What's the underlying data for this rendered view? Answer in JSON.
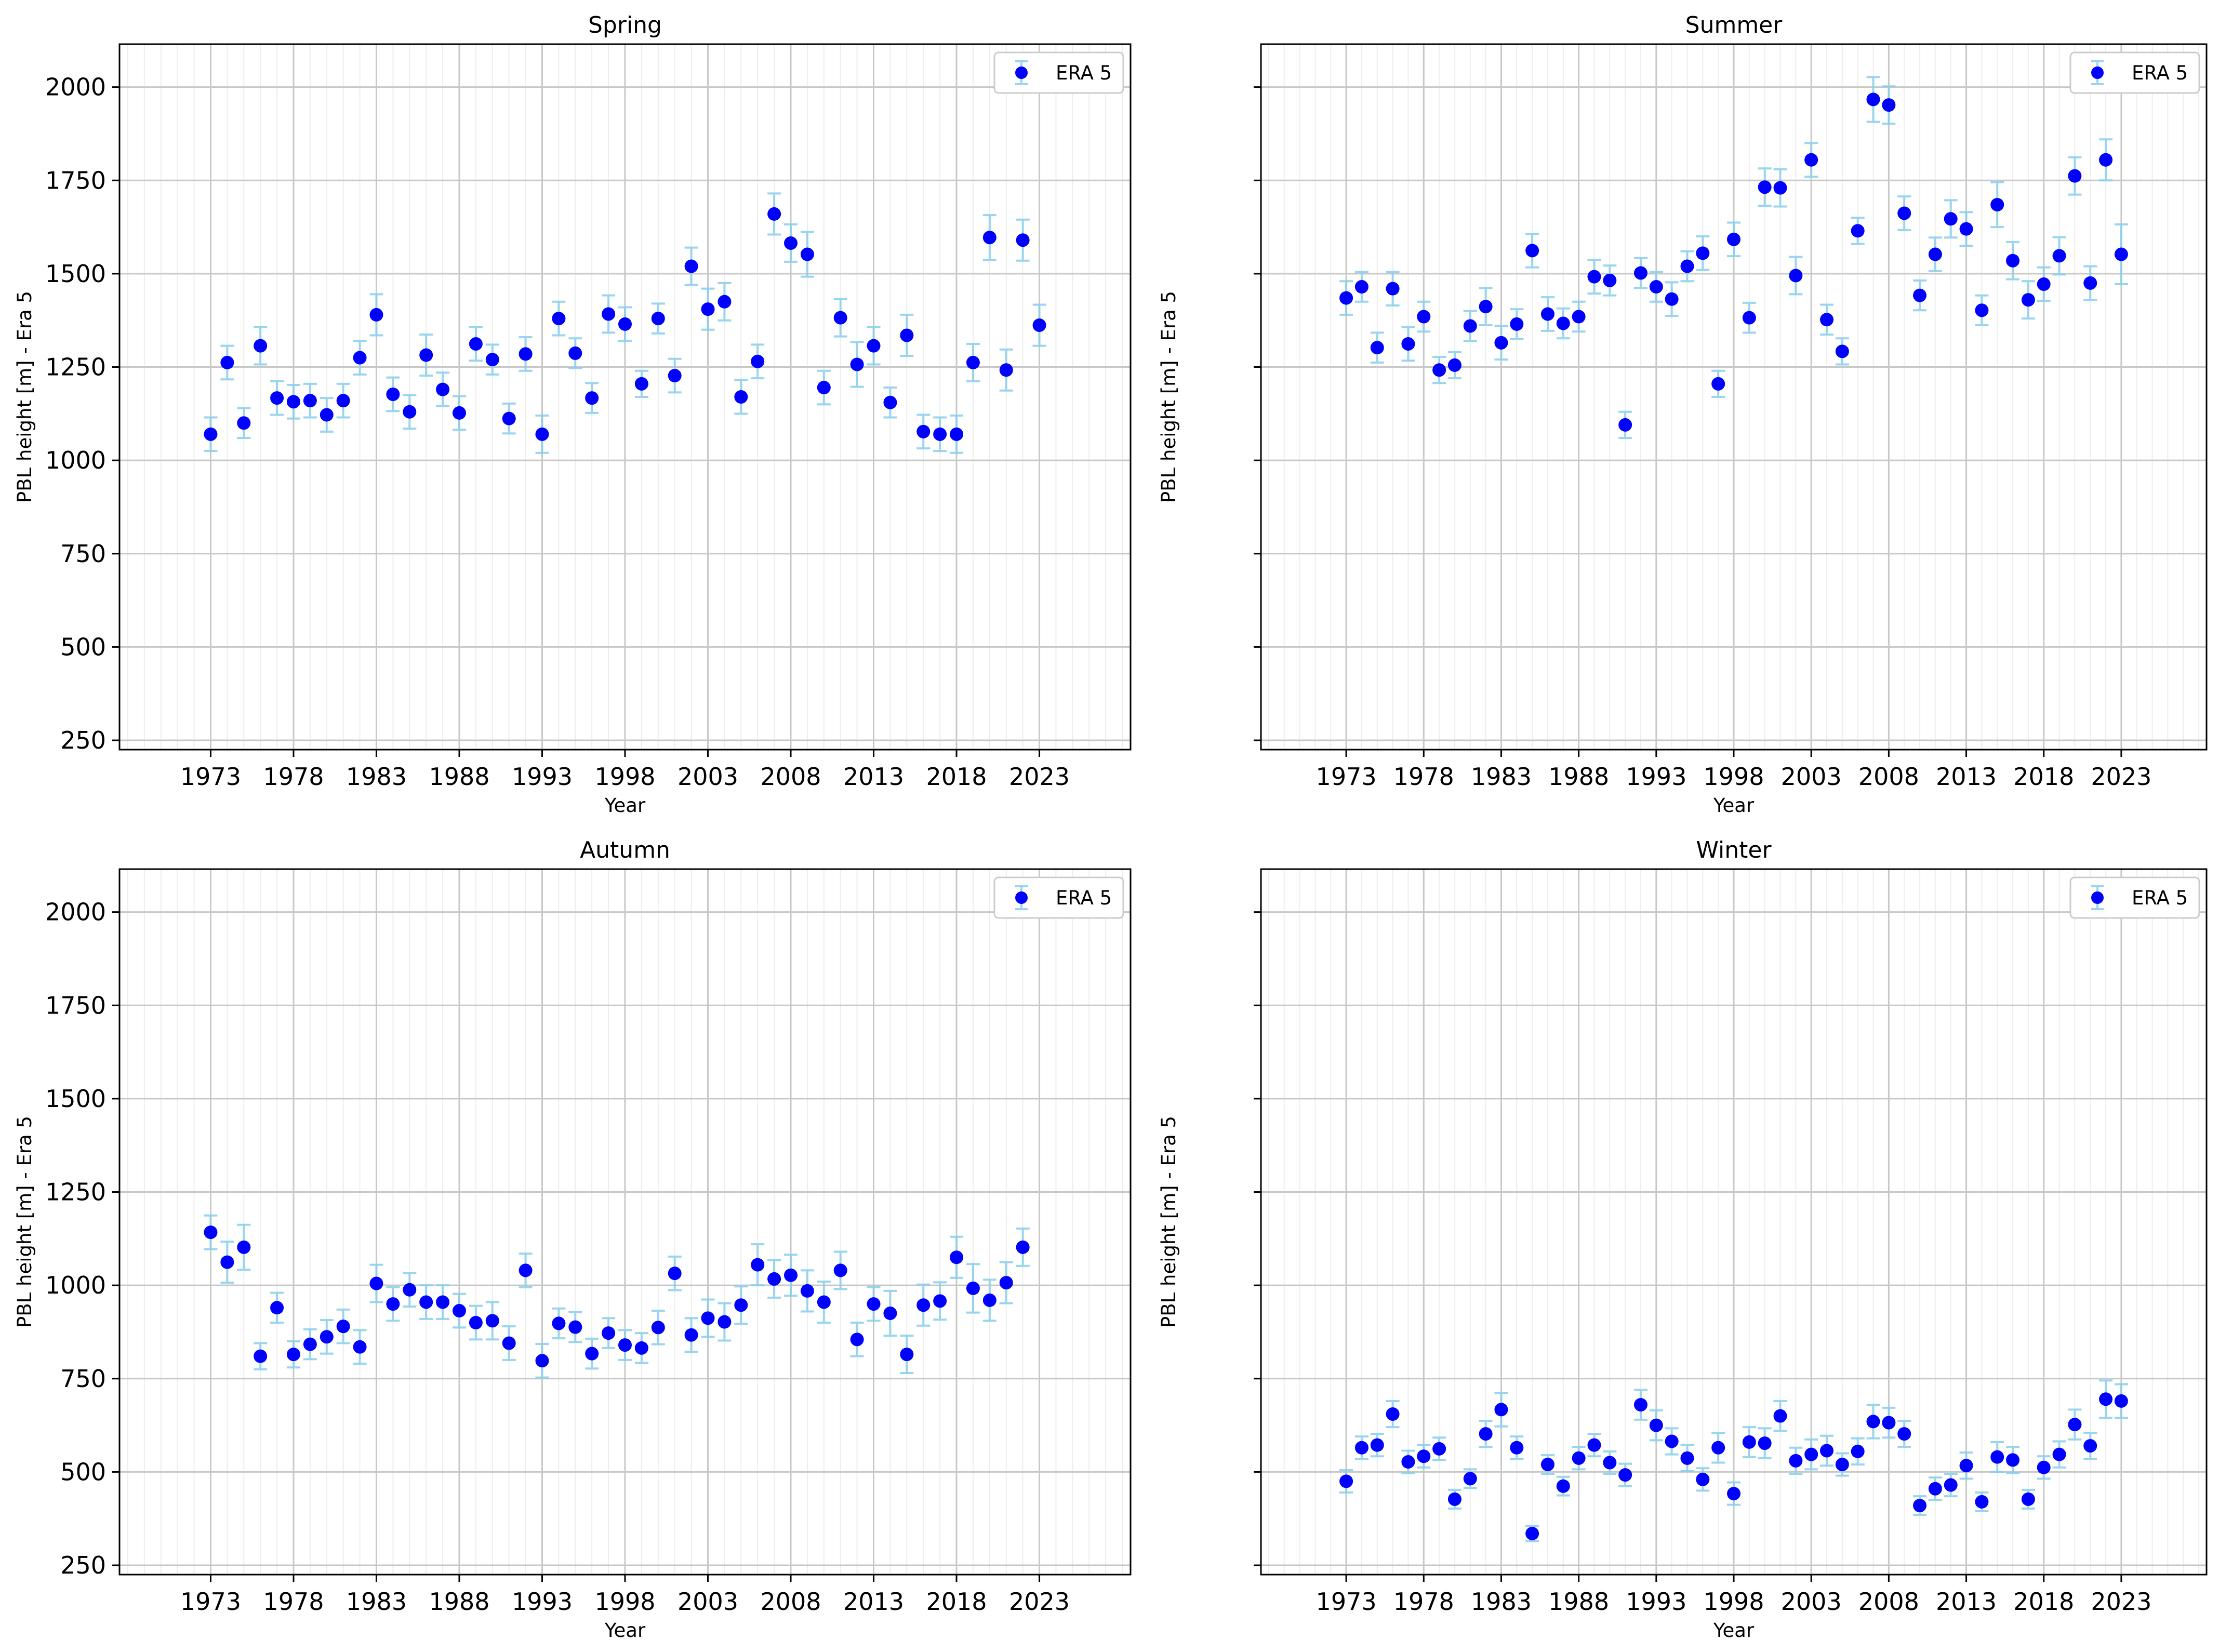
{
  "colors": {
    "marker": "#0000ff",
    "errorbar": "#87ceeb",
    "grid": "#c8c8c8",
    "background": "#ffffff"
  },
  "chart_data": [
    {
      "type": "scatter",
      "title": "Spring",
      "xlabel": "Year",
      "ylabel": "PBL height [m] - Era 5",
      "xlim": [
        1967.5,
        2028.5
      ],
      "ylim": [
        225,
        2115
      ],
      "xticks": [
        1973,
        1978,
        1983,
        1988,
        1993,
        1998,
        2003,
        2008,
        2013,
        2018,
        2023
      ],
      "yticks": [
        250,
        500,
        750,
        1000,
        1250,
        1500,
        1750,
        2000
      ],
      "show_ytick_labels": true,
      "grid": true,
      "legend": {
        "position": "top-right",
        "entries": [
          "ERA 5"
        ]
      },
      "series": [
        {
          "name": "ERA 5",
          "x": [
            1973,
            1974,
            1975,
            1976,
            1977,
            1978,
            1979,
            1980,
            1981,
            1982,
            1983,
            1984,
            1985,
            1986,
            1987,
            1988,
            1989,
            1990,
            1991,
            1992,
            1993,
            1994,
            1995,
            1996,
            1997,
            1998,
            1999,
            2000,
            2001,
            2002,
            2003,
            2004,
            2005,
            2006,
            2007,
            2008,
            2009,
            2010,
            2011,
            2012,
            2013,
            2014,
            2015,
            2016,
            2017,
            2018,
            2019,
            2020,
            2021,
            2022,
            2023
          ],
          "y": [
            1070,
            1262,
            1100,
            1307,
            1167,
            1157,
            1160,
            1122,
            1160,
            1275,
            1390,
            1177,
            1130,
            1282,
            1190,
            1127,
            1312,
            1270,
            1112,
            1285,
            1070,
            1380,
            1287,
            1167,
            1392,
            1365,
            1205,
            1380,
            1227,
            1520,
            1405,
            1425,
            1170,
            1265,
            1660,
            1582,
            1552,
            1195,
            1382,
            1257,
            1307,
            1155,
            1335,
            1077,
            1070,
            1070,
            1262,
            1597,
            1242,
            1590,
            1362
          ],
          "err": [
            45,
            45,
            40,
            50,
            45,
            45,
            45,
            45,
            45,
            45,
            55,
            45,
            45,
            55,
            45,
            45,
            45,
            40,
            40,
            45,
            50,
            45,
            40,
            40,
            50,
            45,
            35,
            40,
            45,
            50,
            55,
            50,
            45,
            45,
            55,
            50,
            60,
            45,
            50,
            60,
            50,
            40,
            55,
            45,
            45,
            50,
            50,
            60,
            55,
            55,
            55
          ]
        }
      ]
    },
    {
      "type": "scatter",
      "title": "Summer",
      "xlabel": "Year",
      "ylabel": "PBL height [m] - Era 5",
      "xlim": [
        1967.5,
        2028.5
      ],
      "ylim": [
        225,
        2115
      ],
      "xticks": [
        1973,
        1978,
        1983,
        1988,
        1993,
        1998,
        2003,
        2008,
        2013,
        2018,
        2023
      ],
      "yticks": [
        250,
        500,
        750,
        1000,
        1250,
        1500,
        1750,
        2000
      ],
      "show_ytick_labels": false,
      "grid": true,
      "legend": {
        "position": "top-right",
        "entries": [
          "ERA 5"
        ]
      },
      "series": [
        {
          "name": "ERA 5",
          "x": [
            1973,
            1974,
            1975,
            1976,
            1977,
            1978,
            1979,
            1980,
            1981,
            1982,
            1983,
            1984,
            1985,
            1986,
            1987,
            1988,
            1989,
            1990,
            1991,
            1992,
            1993,
            1994,
            1995,
            1996,
            1997,
            1998,
            1999,
            2000,
            2001,
            2002,
            2003,
            2004,
            2005,
            2006,
            2007,
            2008,
            2009,
            2010,
            2011,
            2012,
            2013,
            2014,
            2015,
            2016,
            2017,
            2018,
            2019,
            2020,
            2021,
            2022,
            2023
          ],
          "y": [
            1435,
            1465,
            1302,
            1460,
            1312,
            1385,
            1242,
            1255,
            1360,
            1412,
            1315,
            1365,
            1562,
            1392,
            1367,
            1385,
            1492,
            1482,
            1095,
            1502,
            1465,
            1432,
            1520,
            1555,
            1205,
            1592,
            1382,
            1732,
            1730,
            1495,
            1805,
            1377,
            1292,
            1615,
            1967,
            1952,
            1662,
            1442,
            1552,
            1647,
            1620,
            1402,
            1685,
            1535,
            1430,
            1472,
            1548,
            1762,
            1475,
            1805,
            1552
          ],
          "err": [
            45,
            40,
            40,
            45,
            45,
            40,
            35,
            35,
            40,
            50,
            45,
            40,
            45,
            45,
            40,
            40,
            45,
            40,
            35,
            40,
            40,
            45,
            40,
            45,
            35,
            45,
            40,
            50,
            50,
            50,
            45,
            40,
            35,
            35,
            60,
            50,
            45,
            40,
            45,
            50,
            45,
            40,
            60,
            50,
            50,
            45,
            50,
            50,
            45,
            55,
            80
          ]
        }
      ]
    },
    {
      "type": "scatter",
      "title": "Autumn",
      "xlabel": "Year",
      "ylabel": "PBL height [m] - Era 5",
      "xlim": [
        1967.5,
        2028.5
      ],
      "ylim": [
        225,
        2115
      ],
      "xticks": [
        1973,
        1978,
        1983,
        1988,
        1993,
        1998,
        2003,
        2008,
        2013,
        2018,
        2023
      ],
      "yticks": [
        250,
        500,
        750,
        1000,
        1250,
        1500,
        1750,
        2000
      ],
      "show_ytick_labels": true,
      "grid": true,
      "legend": {
        "position": "top-right",
        "entries": [
          "ERA 5"
        ]
      },
      "series": [
        {
          "name": "ERA 5",
          "x": [
            1973,
            1974,
            1975,
            1976,
            1977,
            1978,
            1979,
            1980,
            1981,
            1982,
            1983,
            1984,
            1985,
            1986,
            1987,
            1988,
            1989,
            1990,
            1991,
            1992,
            1993,
            1994,
            1995,
            1996,
            1997,
            1998,
            1999,
            2000,
            2001,
            2002,
            2003,
            2004,
            2005,
            2006,
            2007,
            2008,
            2009,
            2010,
            2011,
            2012,
            2013,
            2014,
            2015,
            2016,
            2017,
            2018,
            2019,
            2020,
            2021,
            2022
          ],
          "y": [
            1142,
            1062,
            1102,
            810,
            940,
            815,
            842,
            862,
            890,
            835,
            1005,
            950,
            988,
            955,
            955,
            932,
            900,
            905,
            845,
            1040,
            798,
            898,
            888,
            817,
            872,
            840,
            832,
            887,
            1032,
            867,
            912,
            902,
            947,
            1055,
            1017,
            1027,
            985,
            955,
            1040,
            855,
            950,
            925,
            815,
            947,
            958,
            1075,
            992,
            960,
            1007,
            1102
          ],
          "err": [
            45,
            55,
            60,
            35,
            40,
            35,
            40,
            45,
            45,
            45,
            50,
            45,
            45,
            45,
            45,
            45,
            45,
            50,
            45,
            45,
            45,
            40,
            40,
            40,
            40,
            40,
            40,
            45,
            45,
            45,
            50,
            50,
            50,
            55,
            50,
            55,
            55,
            55,
            50,
            45,
            45,
            60,
            50,
            55,
            50,
            55,
            65,
            55,
            55,
            50
          ]
        }
      ]
    },
    {
      "type": "scatter",
      "title": "Winter",
      "xlabel": "Year",
      "ylabel": "PBL height [m] - Era 5",
      "xlim": [
        1967.5,
        2028.5
      ],
      "ylim": [
        225,
        2115
      ],
      "xticks": [
        1973,
        1978,
        1983,
        1988,
        1993,
        1998,
        2003,
        2008,
        2013,
        2018,
        2023
      ],
      "yticks": [
        250,
        500,
        750,
        1000,
        1250,
        1500,
        1750,
        2000
      ],
      "show_ytick_labels": false,
      "grid": true,
      "legend": {
        "position": "top-right",
        "entries": [
          "ERA 5"
        ]
      },
      "series": [
        {
          "name": "ERA 5",
          "x": [
            1973,
            1974,
            1975,
            1976,
            1977,
            1978,
            1979,
            1980,
            1981,
            1982,
            1983,
            1984,
            1985,
            1986,
            1987,
            1988,
            1989,
            1990,
            1991,
            1992,
            1993,
            1994,
            1995,
            1996,
            1997,
            1998,
            1999,
            2000,
            2001,
            2002,
            2003,
            2004,
            2005,
            2006,
            2007,
            2008,
            2009,
            2010,
            2011,
            2012,
            2013,
            2014,
            2015,
            2016,
            2017,
            2018,
            2019,
            2020,
            2021,
            2022,
            2023
          ],
          "y": [
            475,
            565,
            572,
            655,
            527,
            542,
            562,
            427,
            482,
            602,
            667,
            565,
            335,
            520,
            462,
            537,
            572,
            525,
            492,
            680,
            625,
            582,
            537,
            480,
            565,
            442,
            580,
            577,
            650,
            530,
            547,
            557,
            520,
            555,
            635,
            632,
            602,
            410,
            455,
            465,
            517,
            420,
            540,
            532,
            427,
            512,
            547,
            627,
            570,
            695,
            690
          ],
          "err": [
            30,
            30,
            30,
            35,
            30,
            30,
            30,
            25,
            25,
            35,
            45,
            30,
            20,
            25,
            25,
            30,
            30,
            30,
            30,
            40,
            40,
            35,
            35,
            30,
            40,
            30,
            40,
            40,
            40,
            35,
            40,
            40,
            30,
            35,
            45,
            40,
            35,
            25,
            30,
            30,
            35,
            25,
            40,
            35,
            25,
            30,
            35,
            40,
            35,
            50,
            45
          ]
        }
      ]
    }
  ]
}
